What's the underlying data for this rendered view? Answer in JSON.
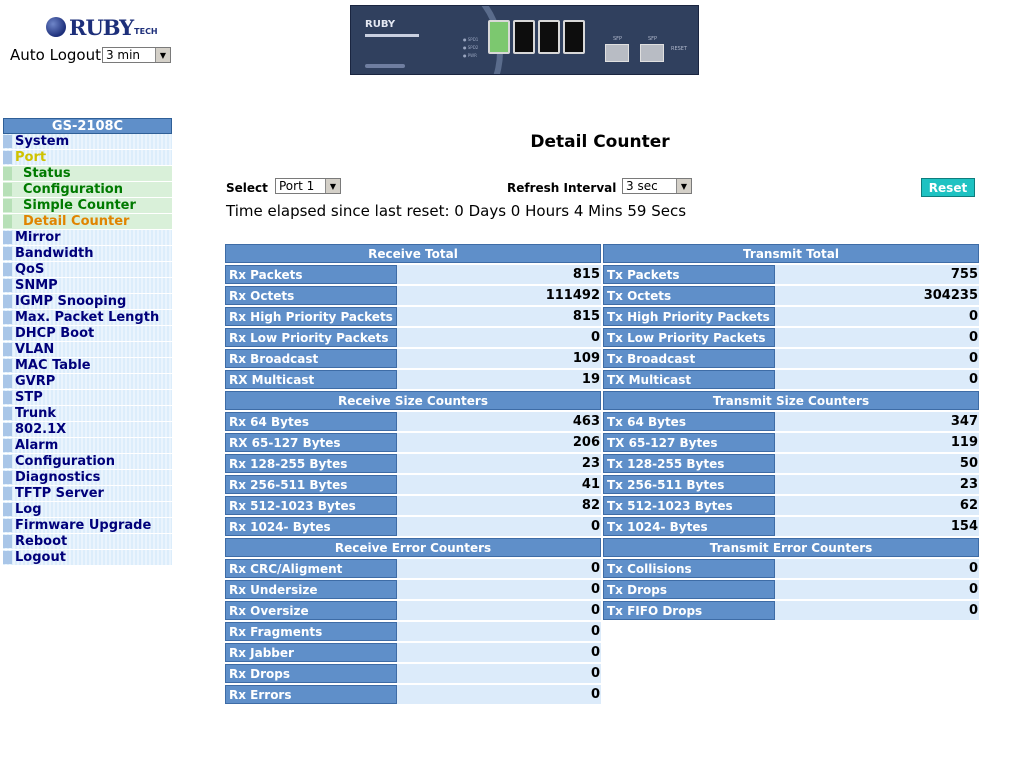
{
  "header": {
    "brand": "RUBY",
    "brand_suffix": "TECH",
    "auto_logout_label": "Auto Logout",
    "auto_logout_value": "3 min"
  },
  "device": {
    "logo": "RUBY",
    "led_labels": [
      "SPD1",
      "SPD2",
      "PWR"
    ],
    "sfp_labels": [
      "SFP",
      "SFP"
    ],
    "reset_label": "RESET",
    "active_port": 1
  },
  "sidebar": {
    "model": "GS-2108C",
    "items": [
      {
        "label": "System",
        "level": 0
      },
      {
        "label": "Port",
        "level": 0,
        "state": "open"
      },
      {
        "label": "Status",
        "level": 1
      },
      {
        "label": "Configuration",
        "level": 1
      },
      {
        "label": "Simple Counter",
        "level": 1
      },
      {
        "label": "Detail Counter",
        "level": 1,
        "state": "current"
      },
      {
        "label": "Mirror",
        "level": 0
      },
      {
        "label": "Bandwidth",
        "level": 0
      },
      {
        "label": "QoS",
        "level": 0
      },
      {
        "label": "SNMP",
        "level": 0
      },
      {
        "label": "IGMP Snooping",
        "level": 0
      },
      {
        "label": "Max. Packet Length",
        "level": 0
      },
      {
        "label": "DHCP Boot",
        "level": 0
      },
      {
        "label": "VLAN",
        "level": 0
      },
      {
        "label": "MAC Table",
        "level": 0
      },
      {
        "label": "GVRP",
        "level": 0
      },
      {
        "label": "STP",
        "level": 0
      },
      {
        "label": "Trunk",
        "level": 0
      },
      {
        "label": "802.1X",
        "level": 0
      },
      {
        "label": "Alarm",
        "level": 0
      },
      {
        "label": "Configuration",
        "level": 0
      },
      {
        "label": "Diagnostics",
        "level": 0
      },
      {
        "label": "TFTP Server",
        "level": 0
      },
      {
        "label": "Log",
        "level": 0
      },
      {
        "label": "Firmware Upgrade",
        "level": 0
      },
      {
        "label": "Reboot",
        "level": 0
      },
      {
        "label": "Logout",
        "level": 0
      }
    ]
  },
  "main": {
    "title": "Detail Counter",
    "select_label": "Select",
    "select_value": "Port 1",
    "refresh_label": "Refresh Interval",
    "refresh_value": "3 sec",
    "reset_label": "Reset",
    "elapsed": "Time elapsed since last reset: 0 Days 0 Hours 4 Mins 59 Secs"
  },
  "receive": [
    {
      "title": "Receive Total",
      "rows": [
        {
          "label": "Rx Packets",
          "value": "815"
        },
        {
          "label": "Rx Octets",
          "value": "111492"
        },
        {
          "label": "Rx High Priority Packets",
          "value": "815"
        },
        {
          "label": "Rx Low Priority Packets",
          "value": "0"
        },
        {
          "label": "Rx Broadcast",
          "value": "109"
        },
        {
          "label": "RX Multicast",
          "value": "19"
        }
      ]
    },
    {
      "title": "Receive Size Counters",
      "rows": [
        {
          "label": "Rx 64 Bytes",
          "value": "463"
        },
        {
          "label": "RX 65-127 Bytes",
          "value": "206"
        },
        {
          "label": "Rx 128-255 Bytes",
          "value": "23"
        },
        {
          "label": "Rx 256-511 Bytes",
          "value": "41"
        },
        {
          "label": "Rx 512-1023 Bytes",
          "value": "82"
        },
        {
          "label": "Rx 1024- Bytes",
          "value": "0"
        }
      ]
    },
    {
      "title": "Receive Error Counters",
      "rows": [
        {
          "label": "Rx CRC/Aligment",
          "value": "0"
        },
        {
          "label": "Rx Undersize",
          "value": "0"
        },
        {
          "label": "Rx Oversize",
          "value": "0"
        },
        {
          "label": "Rx Fragments",
          "value": "0"
        },
        {
          "label": "Rx Jabber",
          "value": "0"
        },
        {
          "label": "Rx Drops",
          "value": "0"
        },
        {
          "label": "Rx Errors",
          "value": "0"
        }
      ]
    }
  ],
  "transmit": [
    {
      "title": "Transmit Total",
      "rows": [
        {
          "label": "Tx Packets",
          "value": "755"
        },
        {
          "label": "Tx Octets",
          "value": "304235"
        },
        {
          "label": "Tx High Priority Packets",
          "value": "0"
        },
        {
          "label": "Tx Low Priority Packets",
          "value": "0"
        },
        {
          "label": "Tx Broadcast",
          "value": "0"
        },
        {
          "label": "TX Multicast",
          "value": "0"
        }
      ]
    },
    {
      "title": "Transmit Size Counters",
      "rows": [
        {
          "label": "Tx 64 Bytes",
          "value": "347"
        },
        {
          "label": "TX 65-127 Bytes",
          "value": "119"
        },
        {
          "label": "Tx 128-255 Bytes",
          "value": "50"
        },
        {
          "label": "Tx 256-511 Bytes",
          "value": "23"
        },
        {
          "label": "Tx 512-1023 Bytes",
          "value": "62"
        },
        {
          "label": "Tx 1024- Bytes",
          "value": "154"
        }
      ]
    },
    {
      "title": "Transmit Error Counters",
      "rows": [
        {
          "label": "Tx Collisions",
          "value": "0"
        },
        {
          "label": "Tx Drops",
          "value": "0"
        },
        {
          "label": "Tx FIFO Drops",
          "value": "0"
        }
      ]
    }
  ],
  "colors": {
    "header_blue": "#5f8fc9",
    "row_light": "#dcebfa",
    "reset_button": "#1ec2c2",
    "menu_open": "#cfc200",
    "submenu": "#007a00",
    "submenu_current": "#e08400"
  }
}
